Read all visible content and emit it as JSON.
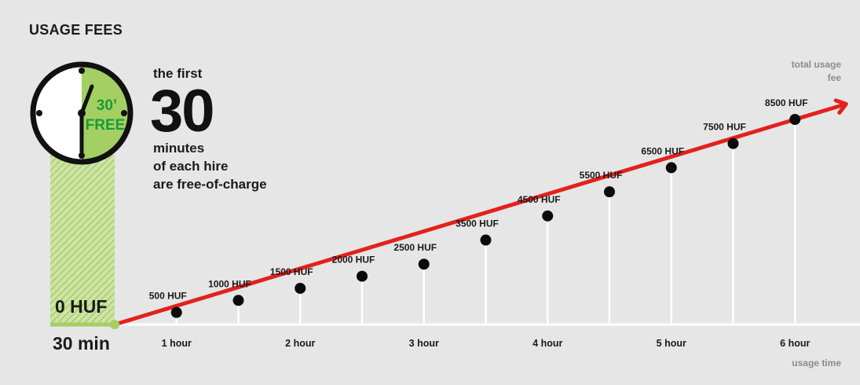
{
  "chart_data": {
    "type": "line",
    "title": "USAGE FEES",
    "intro": {
      "line1": "the first",
      "big_number": "30",
      "line2": "minutes",
      "line3": "of each hire",
      "line4": "are free-of-charge"
    },
    "clock": {
      "free_minutes": "30’",
      "free_label": "FREE"
    },
    "free_period": {
      "fee_label": "0 HUF",
      "duration_label": "30 min"
    },
    "xlabel": "usage time",
    "ylabel_line1": "total usage",
    "ylabel_line2": "fee",
    "x_unit": "hours",
    "y_unit": "HUF",
    "x_ticks": [
      {
        "x": 1,
        "label": "1 hour"
      },
      {
        "x": 2,
        "label": "2 hour"
      },
      {
        "x": 3,
        "label": "3 hour"
      },
      {
        "x": 4,
        "label": "4 hour"
      },
      {
        "x": 5,
        "label": "5 hour"
      },
      {
        "x": 6,
        "label": "6 hour"
      }
    ],
    "points": [
      {
        "x": 0.5,
        "y": 0,
        "label": ""
      },
      {
        "x": 1.0,
        "y": 500,
        "label": "500 HUF"
      },
      {
        "x": 1.5,
        "y": 1000,
        "label": "1000 HUF"
      },
      {
        "x": 2.0,
        "y": 1500,
        "label": "1500 HUF"
      },
      {
        "x": 2.5,
        "y": 2000,
        "label": "2000 HUF"
      },
      {
        "x": 3.0,
        "y": 2500,
        "label": "2500 HUF"
      },
      {
        "x": 3.5,
        "y": 3500,
        "label": "3500 HUF"
      },
      {
        "x": 4.0,
        "y": 4500,
        "label": "4500 HUF"
      },
      {
        "x": 4.5,
        "y": 5500,
        "label": "5500 HUF"
      },
      {
        "x": 5.0,
        "y": 6500,
        "label": "6500 HUF"
      },
      {
        "x": 5.5,
        "y": 7500,
        "label": "7500 HUF"
      },
      {
        "x": 6.0,
        "y": 8500,
        "label": "8500 HUF"
      }
    ],
    "colors": {
      "line": "#e3211c",
      "point": "#0a0a0a",
      "free_zone": "#a4cf63",
      "axis": "#ffffff",
      "background": "#e6e6e7"
    }
  }
}
